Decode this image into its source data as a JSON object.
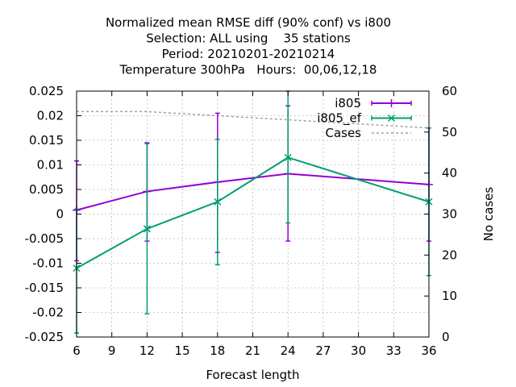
{
  "chart_data": {
    "type": "line",
    "title_lines": [
      "Normalized mean RMSE diff (90% conf) vs i800",
      "Selection: ALL using    35 stations",
      "Period: 20210201-20210214",
      "Temperature 300hPa   Hours:  00,06,12,18"
    ],
    "xlabel": "Forecast length",
    "y2label": "No cases",
    "xlim": [
      6,
      36
    ],
    "xticks": [
      6,
      9,
      12,
      15,
      18,
      21,
      24,
      27,
      30,
      33,
      36
    ],
    "ylim": [
      -0.025,
      0.025
    ],
    "yticks": [
      -0.025,
      -0.02,
      -0.015,
      -0.01,
      -0.005,
      0,
      0.005,
      0.01,
      0.015,
      0.02,
      0.025
    ],
    "yticklabels": [
      "-0.025",
      "-0.02",
      "-0.015",
      "-0.01",
      "-0.005",
      "0",
      "0.005",
      "0.01",
      "0.015",
      "0.02",
      "0.025"
    ],
    "y2lim": [
      0,
      60
    ],
    "y2ticks": [
      0,
      10,
      20,
      30,
      40,
      50,
      60
    ],
    "grid": true,
    "legend_position": "top-right",
    "series": [
      {
        "name": "i805",
        "color": "#9400d3",
        "marker": "plus",
        "axis": "y",
        "x": [
          6,
          12,
          18,
          24,
          36
        ],
        "y": [
          0.0008,
          0.0046,
          0.0065,
          0.0082,
          0.006
        ],
        "err_low": [
          -0.0095,
          -0.0055,
          -0.0078,
          -0.0055,
          -0.0055
        ],
        "err_high": [
          0.0108,
          0.0145,
          0.0205,
          0.022,
          0.0175
        ]
      },
      {
        "name": "i805_ef",
        "color": "#009e73",
        "marker": "cross",
        "axis": "y",
        "x": [
          6,
          12,
          18,
          24,
          36
        ],
        "y": [
          -0.011,
          -0.003,
          0.0025,
          0.0115,
          0.0025
        ],
        "err_low": [
          -0.0242,
          -0.0203,
          -0.0103,
          -0.0018,
          -0.0125
        ],
        "err_high": [
          0.001,
          0.0143,
          0.0152,
          0.025,
          0.0175
        ]
      },
      {
        "name": "Cases",
        "color": "#a0a0a0",
        "dashed": true,
        "axis": "y2",
        "x": [
          6,
          12,
          18,
          24,
          36
        ],
        "y": [
          55,
          55,
          54,
          53,
          51
        ]
      }
    ]
  }
}
